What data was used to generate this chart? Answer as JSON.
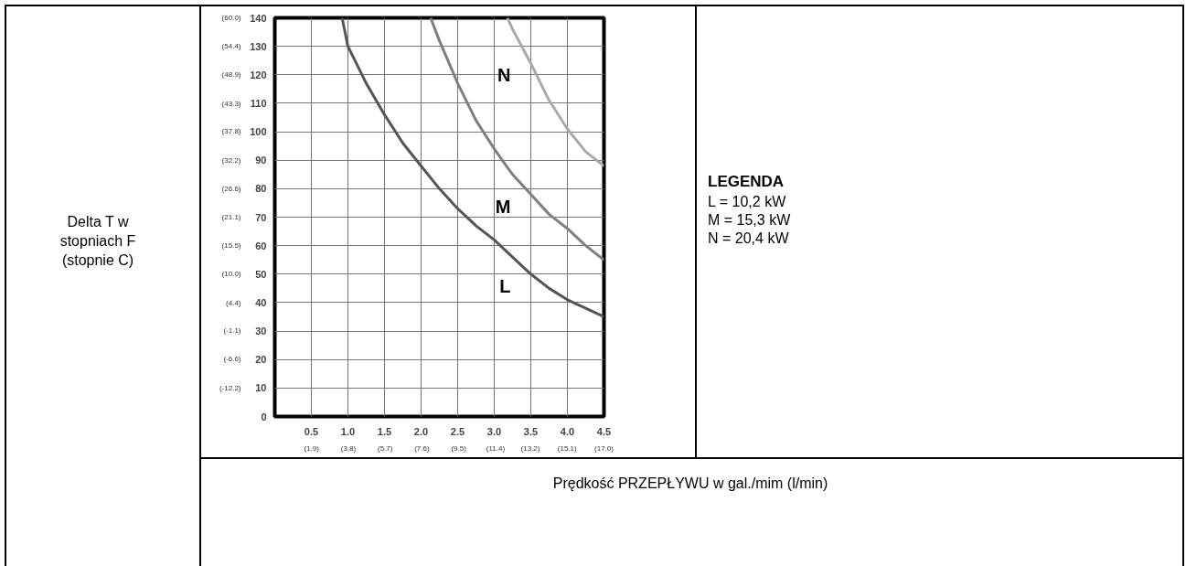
{
  "chart_data": {
    "type": "line",
    "xlabel": "Prędkość PRZEPŁYWU w gal./mim (l/min)",
    "legend_title": "LEGENDA",
    "annotations": [
      "Delta T w stopniach F (stopnie C)",
      "L = 10,2 kW",
      "M = 15,3 kW",
      "N = 20,4 kW"
    ],
    "series": [
      {
        "name": "L",
        "color": "#555555",
        "x": [
          0.92,
          1.0,
          1.25,
          1.5,
          1.75,
          2.0,
          2.25,
          2.5,
          2.75,
          3.0,
          3.25,
          3.5,
          3.75,
          4.0,
          4.25,
          4.5
        ],
        "values": [
          140,
          130,
          117,
          106,
          96,
          88,
          80,
          73,
          67,
          62,
          56,
          50,
          45,
          41,
          38,
          35
        ]
      },
      {
        "name": "M",
        "color": "#7f7f7f",
        "x": [
          2.13,
          2.25,
          2.5,
          2.75,
          3.0,
          3.25,
          3.5,
          3.75,
          4.0,
          4.25,
          4.5
        ],
        "values": [
          140,
          132,
          117,
          104,
          94,
          85,
          78,
          71,
          66,
          60,
          55
        ]
      },
      {
        "name": "N",
        "color": "#a9a9a9",
        "x": [
          3.18,
          3.25,
          3.5,
          3.75,
          4.0,
          4.25,
          4.5
        ],
        "values": [
          140,
          136,
          124,
          111,
          101,
          93,
          88
        ]
      }
    ],
    "xlim": [
      0,
      4.5
    ],
    "ylim": [
      0,
      140
    ],
    "xticks": [
      0.5,
      {
        "value": 1,
        "label": "1.0"
      },
      1.5,
      {
        "value": 2,
        "label": "2.0"
      },
      2.5,
      {
        "value": 3,
        "label": "3.0"
      },
      3.5,
      {
        "value": 4,
        "label": "4.0"
      },
      4.5
    ],
    "yticks": [
      0,
      10,
      20,
      30,
      40,
      50,
      60,
      70,
      80,
      90,
      100,
      110,
      120,
      130,
      140
    ],
    "x2lim": [
      0,
      17.0
    ],
    "x2ticks": [
      {
        "value": 1.9,
        "label": "(1.9)"
      },
      {
        "value": 3.8,
        "label": "(3.8)"
      },
      {
        "value": 5.7,
        "label": "(5.7)"
      },
      {
        "value": 7.6,
        "label": "(7.6)"
      },
      {
        "value": 9.5,
        "label": "(9.5)"
      },
      {
        "value": 11.4,
        "label": "(11.4)"
      },
      {
        "value": 13.2,
        "label": "(13.2)"
      },
      {
        "value": 15.1,
        "label": "(15.1)"
      },
      {
        "value": 17.0,
        "label": "(17.0)"
      }
    ],
    "y2lim": [
      -17.8,
      60.0
    ],
    "y2ticks": [
      {
        "value": -12.2,
        "label": "(-12.2)"
      },
      {
        "value": -6.6,
        "label": "(-6.6)"
      },
      {
        "value": -1.1,
        "label": "(-1.1)"
      },
      {
        "value": 4.4,
        "label": "(4.4)"
      },
      {
        "value": 10.0,
        "label": "(10.0)"
      },
      {
        "value": 15.5,
        "label": "(15.5)"
      },
      {
        "value": 21.1,
        "label": "(21.1)"
      },
      {
        "value": 26.6,
        "label": "(26.6)"
      },
      {
        "value": 32.2,
        "label": "(32.2)"
      },
      {
        "value": 37.8,
        "label": "(37.8)"
      },
      {
        "value": 43.3,
        "label": "(43.3)"
      },
      {
        "value": 48.9,
        "label": "(48.9)"
      },
      {
        "value": 54.4,
        "label": "(54.4)"
      },
      {
        "value": 60.0,
        "label": "(60.0)"
      }
    ],
    "grid": true,
    "marker": "none",
    "line_style": "solid"
  }
}
